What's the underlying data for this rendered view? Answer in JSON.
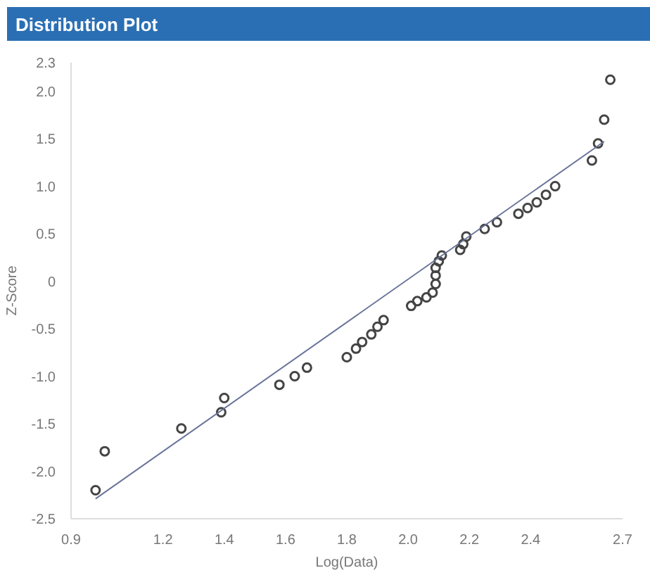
{
  "chart_data": {
    "type": "scatter",
    "title": "Distribution Plot",
    "xlabel": "Log(Data)",
    "ylabel": "Z-Score",
    "xlim": [
      0.9,
      2.7
    ],
    "xticks": [
      0.9,
      1.2,
      1.4,
      1.6,
      1.8,
      {
        "value": 2,
        "label": "2.0"
      },
      2.2,
      2.4,
      2.7
    ],
    "ylim": [
      -2.5,
      2.3
    ],
    "yticks": [
      -2.5,
      {
        "value": -2,
        "label": "-2.0"
      },
      -1.5,
      {
        "value": -1,
        "label": "-1.0"
      },
      -0.5,
      0,
      0.5,
      {
        "value": 1,
        "label": "1.0"
      },
      1.5,
      {
        "value": 2,
        "label": "2.0"
      },
      2.3
    ],
    "grid": false,
    "series": [
      {
        "marker": "circle",
        "color": "#444444",
        "x": [
          0.98,
          1.01,
          1.26,
          1.39,
          1.4,
          1.58,
          1.63,
          1.67,
          1.8,
          1.83,
          1.85,
          1.88,
          1.9,
          1.92,
          2.01,
          2.03,
          2.06,
          2.08,
          2.09,
          2.09,
          2.09,
          2.1,
          2.11,
          2.17,
          2.18,
          2.19,
          2.25,
          2.29,
          2.36,
          2.39,
          2.42,
          2.45,
          2.48,
          2.6,
          2.62,
          2.64,
          2.66
        ],
        "values": [
          -2.2,
          -1.79,
          -1.55,
          -1.38,
          -1.23,
          -1.09,
          -1.0,
          -0.91,
          -0.8,
          -0.71,
          -0.64,
          -0.56,
          -0.48,
          -0.41,
          -0.26,
          -0.21,
          -0.17,
          -0.12,
          -0.03,
          0.06,
          0.14,
          0.21,
          0.27,
          0.33,
          0.39,
          0.47,
          0.55,
          0.62,
          0.71,
          0.77,
          0.83,
          0.91,
          1.0,
          1.27,
          1.45,
          1.7,
          2.12
        ]
      },
      {
        "type": "line",
        "color": "#6a7499",
        "x": [
          0.98,
          2.64
        ],
        "values": [
          -2.29,
          1.47
        ]
      }
    ]
  }
}
